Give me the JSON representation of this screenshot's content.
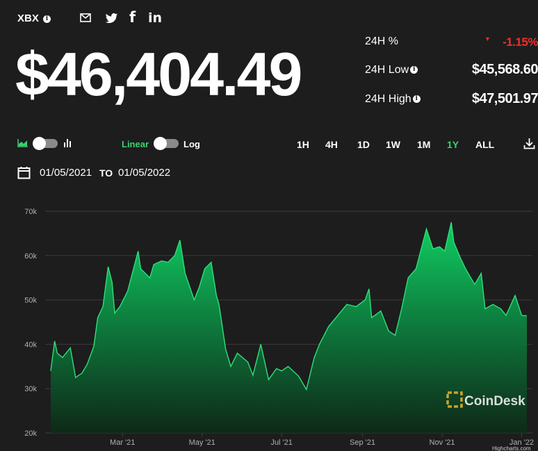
{
  "header": {
    "ticker": "XBX",
    "info_glyph": "i",
    "share_icons": [
      "mail-icon",
      "twitter-icon",
      "facebook-icon",
      "linkedin-icon"
    ],
    "facebook_glyph": "f",
    "linkedin_glyph": "in"
  },
  "price": "$46,404.49",
  "stats": {
    "pct_label": "24H %",
    "pct_value": "-1.15%",
    "low_label": "24H Low",
    "low_value": "$45,568.60",
    "high_label": "24H High",
    "high_value": "$47,501.97"
  },
  "controls": {
    "linear_label": "Linear",
    "log_label": "Log",
    "ranges": [
      "1H",
      "4H",
      "1D",
      "1W",
      "1M",
      "1Y",
      "ALL"
    ],
    "active_range": "1Y",
    "from_date": "01/05/2021",
    "to_label": "TO",
    "to_date": "01/05/2022"
  },
  "colors": {
    "background": "#1d1d1d",
    "accent_green": "#3bd16f",
    "negative_red": "#f42c2c",
    "area_top": "#0fcf63",
    "area_bottom": "#0c2b18"
  },
  "watermark": "CoinDesk",
  "credit": "Highcharts.com",
  "chart_data": {
    "type": "area",
    "x_labels": [
      "Mar '21",
      "May '21",
      "Jul '21",
      "Sep '21",
      "Nov '21",
      "Jan '22"
    ],
    "y_ticks": [
      "20k",
      "30k",
      "40k",
      "50k",
      "60k",
      "70k"
    ],
    "ylim": [
      20000,
      70000
    ],
    "xlim": [
      "2021-01-05",
      "2022-01-05"
    ],
    "grid": true,
    "series": [
      {
        "x": [
          "2021-01-05",
          "2021-01-08",
          "2021-01-10",
          "2021-01-14",
          "2021-01-20",
          "2021-01-24",
          "2021-01-29",
          "2021-02-02",
          "2021-02-07",
          "2021-02-10",
          "2021-02-14",
          "2021-02-18",
          "2021-02-21",
          "2021-02-23",
          "2021-02-27",
          "2021-03-05",
          "2021-03-13",
          "2021-03-15",
          "2021-03-22",
          "2021-03-25",
          "2021-03-31",
          "2021-04-05",
          "2021-04-10",
          "2021-04-14",
          "2021-04-18",
          "2021-04-25",
          "2021-04-29",
          "2021-05-03",
          "2021-05-08",
          "2021-05-12",
          "2021-05-14",
          "2021-05-19",
          "2021-05-23",
          "2021-05-28",
          "2021-06-05",
          "2021-06-09",
          "2021-06-15",
          "2021-06-21",
          "2021-06-27",
          "2021-07-01",
          "2021-07-06",
          "2021-07-14",
          "2021-07-20",
          "2021-07-26",
          "2021-07-30",
          "2021-08-06",
          "2021-08-13",
          "2021-08-20",
          "2021-08-27",
          "2021-09-03",
          "2021-09-06",
          "2021-09-08",
          "2021-09-15",
          "2021-09-21",
          "2021-09-26",
          "2021-10-01",
          "2021-10-06",
          "2021-10-12",
          "2021-10-16",
          "2021-10-20",
          "2021-10-25",
          "2021-10-30",
          "2021-11-03",
          "2021-11-08",
          "2021-11-10",
          "2021-11-15",
          "2021-11-19",
          "2021-11-26",
          "2021-12-01",
          "2021-12-04",
          "2021-12-10",
          "2021-12-16",
          "2021-12-20",
          "2021-12-27",
          "2022-01-01",
          "2022-01-05"
        ],
        "values": [
          34000,
          40700,
          38000,
          37000,
          39200,
          32500,
          33500,
          35500,
          39500,
          46000,
          48500,
          57500,
          54000,
          47000,
          48500,
          52000,
          61000,
          57000,
          55000,
          58000,
          58800,
          58500,
          60000,
          63500,
          56000,
          50000,
          53000,
          57000,
          58500,
          51000,
          49000,
          39000,
          35000,
          38000,
          36000,
          33000,
          40000,
          32000,
          34500,
          34000,
          35000,
          32800,
          29800,
          37000,
          40000,
          44000,
          46500,
          49000,
          48500,
          50000,
          52500,
          46000,
          47500,
          43000,
          42000,
          48000,
          55000,
          57000,
          61500,
          66000,
          61500,
          62000,
          61000,
          67500,
          63000,
          59500,
          57000,
          53500,
          56000,
          48000,
          49000,
          48000,
          46500,
          51000,
          46500,
          46404
        ]
      }
    ]
  }
}
